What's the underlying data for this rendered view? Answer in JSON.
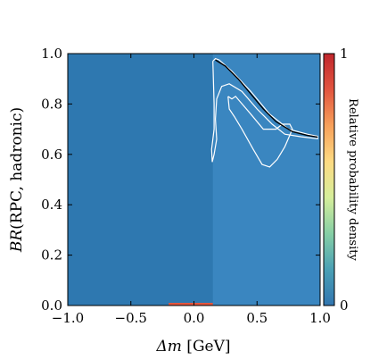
{
  "chart_data": {
    "type": "heatmap",
    "title": "",
    "xlabel_math": "Δm",
    "xlabel_unit": " [GeV]",
    "ylabel_math": "BR",
    "ylabel_text": "(RPC, hadronic)",
    "xlim": [
      -1.0,
      1.0
    ],
    "ylim": [
      0.0,
      1.0
    ],
    "xticks": [
      "−1.0",
      "−0.5",
      "0.0",
      "0.5",
      "1.0"
    ],
    "yticks": [
      "0.0",
      "0.2",
      "0.4",
      "0.6",
      "0.8",
      "1.0"
    ],
    "colorbar": {
      "label": "Relative probability density",
      "min_label": "0",
      "max_label": "1",
      "colors": [
        "#3275b0",
        "#4aa0b5",
        "#86cfa5",
        "#d6ee9b",
        "#fdda82",
        "#f7a05a",
        "#e2553f",
        "#c0262c"
      ]
    },
    "background_color": "#2e78b0",
    "region_color": "#3a86c0",
    "region_xmin": 0.15,
    "contours": [
      {
        "level": "outer",
        "color": "#ffffff",
        "points": [
          [
            0.15,
            0.97
          ],
          [
            0.17,
            0.98
          ],
          [
            0.2,
            0.975
          ],
          [
            0.3,
            0.93
          ],
          [
            0.45,
            0.85
          ],
          [
            0.6,
            0.76
          ],
          [
            0.75,
            0.7
          ],
          [
            0.9,
            0.68
          ],
          [
            0.98,
            0.672
          ],
          [
            0.98,
            0.662
          ],
          [
            0.85,
            0.67
          ],
          [
            0.72,
            0.68
          ],
          [
            0.62,
            0.72
          ],
          [
            0.5,
            0.78
          ],
          [
            0.38,
            0.85
          ],
          [
            0.28,
            0.88
          ],
          [
            0.22,
            0.87
          ],
          [
            0.18,
            0.82
          ],
          [
            0.17,
            0.74
          ],
          [
            0.175,
            0.7
          ],
          [
            0.18,
            0.66
          ],
          [
            0.16,
            0.6
          ],
          [
            0.145,
            0.57
          ],
          [
            0.14,
            0.62
          ],
          [
            0.16,
            0.7
          ],
          [
            0.16,
            0.8
          ],
          [
            0.15,
            0.97
          ]
        ]
      },
      {
        "level": "inner",
        "color": "#ffffff",
        "points": [
          [
            0.27,
            0.83
          ],
          [
            0.3,
            0.82
          ],
          [
            0.33,
            0.83
          ],
          [
            0.45,
            0.76
          ],
          [
            0.55,
            0.7
          ],
          [
            0.65,
            0.7
          ],
          [
            0.7,
            0.72
          ],
          [
            0.76,
            0.72
          ],
          [
            0.78,
            0.7
          ],
          [
            0.72,
            0.63
          ],
          [
            0.66,
            0.58
          ],
          [
            0.6,
            0.55
          ],
          [
            0.54,
            0.56
          ],
          [
            0.47,
            0.62
          ],
          [
            0.38,
            0.7
          ],
          [
            0.32,
            0.75
          ],
          [
            0.28,
            0.78
          ],
          [
            0.27,
            0.83
          ]
        ]
      },
      {
        "level": "peak",
        "color": "#000000",
        "points": [
          [
            0.17,
            0.975
          ],
          [
            0.25,
            0.95
          ],
          [
            0.35,
            0.9
          ],
          [
            0.45,
            0.84
          ],
          [
            0.55,
            0.78
          ],
          [
            0.65,
            0.73
          ],
          [
            0.78,
            0.69
          ],
          [
            0.9,
            0.675
          ],
          [
            0.98,
            0.668
          ]
        ]
      }
    ],
    "hot_spot": {
      "x_range": [
        -0.2,
        0.15
      ],
      "y": 0.0,
      "color": "#e2553f"
    }
  }
}
